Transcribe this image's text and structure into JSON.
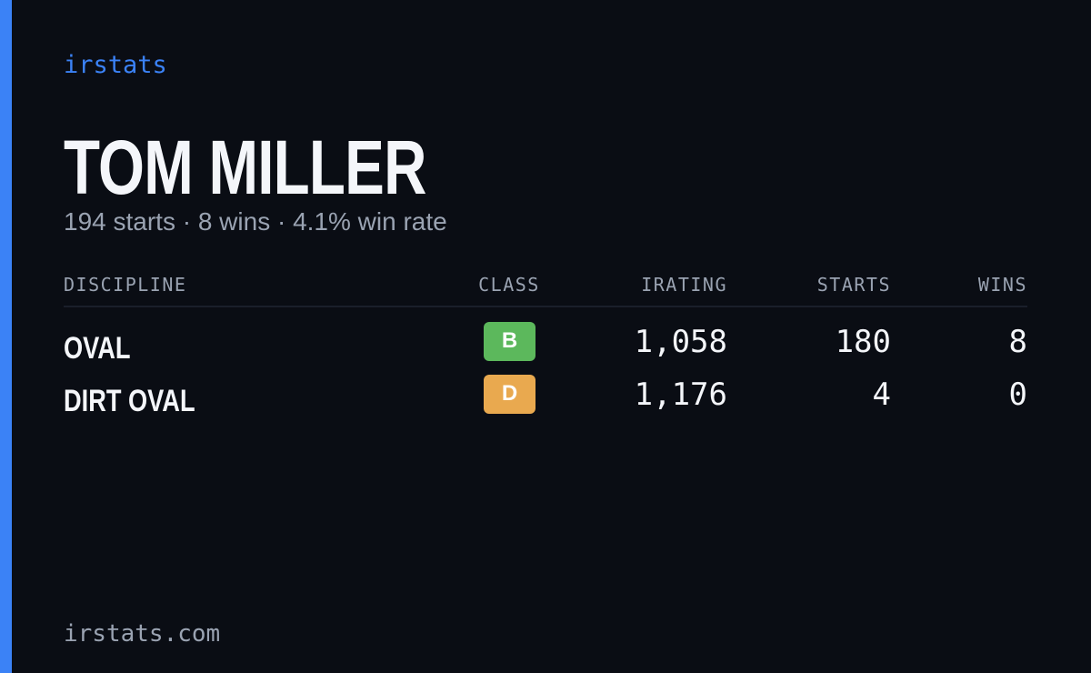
{
  "brand": "irstats",
  "header": {
    "name": "TOM MILLER",
    "summary": "194 starts · 8 wins · 4.1% win rate"
  },
  "table": {
    "columns": [
      "DISCIPLINE",
      "CLASS",
      "IRATING",
      "STARTS",
      "WINS"
    ],
    "rows": [
      [
        "OVAL",
        "B",
        "1,058",
        "180",
        "8"
      ],
      [
        "DIRT OVAL",
        "D",
        "1,176",
        "4",
        "0"
      ]
    ]
  },
  "footer": "irstats.com"
}
